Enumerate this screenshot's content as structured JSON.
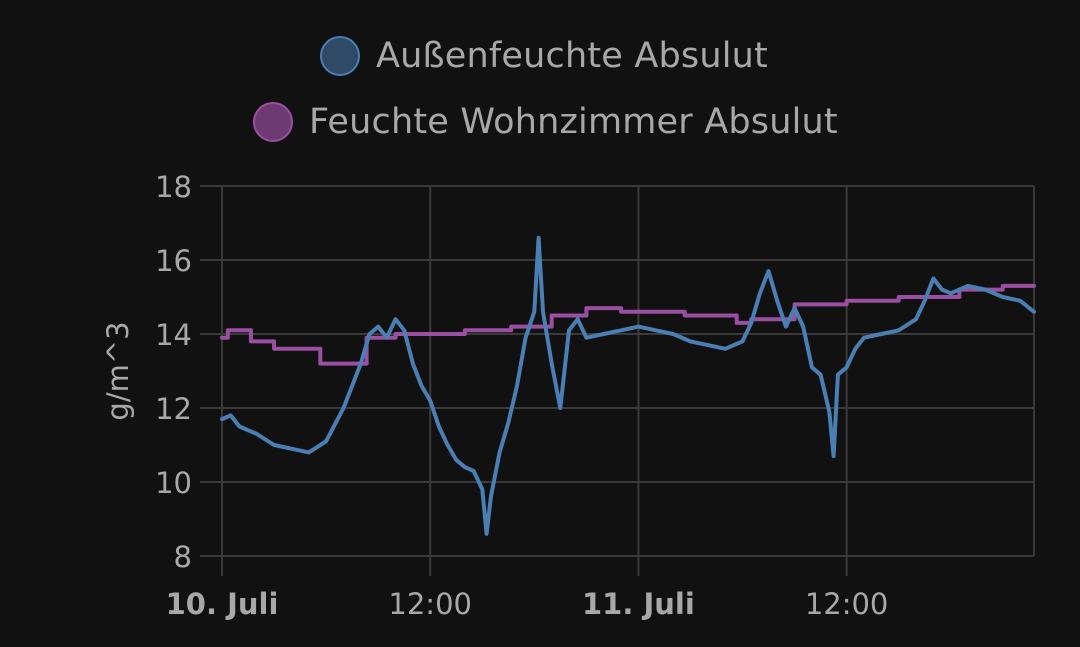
{
  "chart_data": {
    "type": "line",
    "title": "",
    "xlabel": "",
    "ylabel": "g/m^3",
    "ylim": [
      8,
      18
    ],
    "yticks": [
      8,
      10,
      12,
      14,
      16,
      18
    ],
    "xlim": [
      "2023-07-10T00:00",
      "2023-07-11T22:48"
    ],
    "xticks": [
      {
        "t": "2023-07-10T00:00",
        "label": "10. Juli",
        "major": true
      },
      {
        "t": "2023-07-10T12:00",
        "label": "12:00",
        "major": false
      },
      {
        "t": "2023-07-11T00:00",
        "label": "11. Juli",
        "major": true
      },
      {
        "t": "2023-07-11T12:00",
        "label": "12:00",
        "major": false
      }
    ],
    "grid": true,
    "legend_position": "top",
    "series": [
      {
        "name": "Außenfeuchte Absulut",
        "color": "#4a7fb3",
        "fill": "#2e4a66",
        "step": false,
        "points": [
          [
            "2023-07-10T00:00",
            11.7
          ],
          [
            "2023-07-10T00:30",
            11.8
          ],
          [
            "2023-07-10T01:00",
            11.5
          ],
          [
            "2023-07-10T02:00",
            11.3
          ],
          [
            "2023-07-10T03:00",
            11.0
          ],
          [
            "2023-07-10T04:00",
            10.9
          ],
          [
            "2023-07-10T05:00",
            10.8
          ],
          [
            "2023-07-10T06:00",
            11.1
          ],
          [
            "2023-07-10T07:00",
            12.0
          ],
          [
            "2023-07-10T08:00",
            13.2
          ],
          [
            "2023-07-10T08:30",
            14.0
          ],
          [
            "2023-07-10T09:00",
            14.2
          ],
          [
            "2023-07-10T09:30",
            13.9
          ],
          [
            "2023-07-10T10:00",
            14.4
          ],
          [
            "2023-07-10T10:30",
            14.1
          ],
          [
            "2023-07-10T11:00",
            13.2
          ],
          [
            "2023-07-10T11:30",
            12.6
          ],
          [
            "2023-07-10T12:00",
            12.2
          ],
          [
            "2023-07-10T12:30",
            11.5
          ],
          [
            "2023-07-10T13:00",
            11.0
          ],
          [
            "2023-07-10T13:30",
            10.6
          ],
          [
            "2023-07-10T14:00",
            10.4
          ],
          [
            "2023-07-10T14:30",
            10.3
          ],
          [
            "2023-07-10T15:00",
            9.8
          ],
          [
            "2023-07-10T15:15",
            8.6
          ],
          [
            "2023-07-10T15:30",
            9.6
          ],
          [
            "2023-07-10T16:00",
            10.8
          ],
          [
            "2023-07-10T16:30",
            11.6
          ],
          [
            "2023-07-10T17:00",
            12.6
          ],
          [
            "2023-07-10T17:30",
            13.9
          ],
          [
            "2023-07-10T18:00",
            14.6
          ],
          [
            "2023-07-10T18:15",
            16.6
          ],
          [
            "2023-07-10T18:30",
            14.6
          ],
          [
            "2023-07-10T19:00",
            13.2
          ],
          [
            "2023-07-10T19:30",
            12.0
          ],
          [
            "2023-07-10T20:00",
            14.1
          ],
          [
            "2023-07-10T20:30",
            14.4
          ],
          [
            "2023-07-10T21:00",
            13.9
          ],
          [
            "2023-07-10T22:00",
            14.0
          ],
          [
            "2023-07-10T23:00",
            14.1
          ],
          [
            "2023-07-11T00:00",
            14.2
          ],
          [
            "2023-07-11T01:00",
            14.1
          ],
          [
            "2023-07-11T02:00",
            14.0
          ],
          [
            "2023-07-11T03:00",
            13.8
          ],
          [
            "2023-07-11T04:00",
            13.7
          ],
          [
            "2023-07-11T05:00",
            13.6
          ],
          [
            "2023-07-11T06:00",
            13.8
          ],
          [
            "2023-07-11T06:30",
            14.3
          ],
          [
            "2023-07-11T07:00",
            15.1
          ],
          [
            "2023-07-11T07:30",
            15.7
          ],
          [
            "2023-07-11T08:00",
            14.9
          ],
          [
            "2023-07-11T08:30",
            14.2
          ],
          [
            "2023-07-11T09:00",
            14.7
          ],
          [
            "2023-07-11T09:30",
            14.2
          ],
          [
            "2023-07-11T10:00",
            13.1
          ],
          [
            "2023-07-11T10:30",
            12.9
          ],
          [
            "2023-07-11T11:00",
            11.9
          ],
          [
            "2023-07-11T11:15",
            10.7
          ],
          [
            "2023-07-11T11:30",
            12.9
          ],
          [
            "2023-07-11T12:00",
            13.1
          ],
          [
            "2023-07-11T12:30",
            13.6
          ],
          [
            "2023-07-11T13:00",
            13.9
          ],
          [
            "2023-07-11T14:00",
            14.0
          ],
          [
            "2023-07-11T15:00",
            14.1
          ],
          [
            "2023-07-11T16:00",
            14.4
          ],
          [
            "2023-07-11T16:30",
            14.9
          ],
          [
            "2023-07-11T17:00",
            15.5
          ],
          [
            "2023-07-11T17:30",
            15.2
          ],
          [
            "2023-07-11T18:00",
            15.1
          ],
          [
            "2023-07-11T19:00",
            15.3
          ],
          [
            "2023-07-11T20:00",
            15.2
          ],
          [
            "2023-07-11T21:00",
            15.0
          ],
          [
            "2023-07-11T22:00",
            14.9
          ],
          [
            "2023-07-11T22:48",
            14.6
          ]
        ]
      },
      {
        "name": "Feuchte Wohnzimmer Absulut",
        "color": "#9b4fa3",
        "fill": "#6e3a73",
        "step": true,
        "points": [
          [
            "2023-07-10T00:00",
            13.9
          ],
          [
            "2023-07-10T00:20",
            14.1
          ],
          [
            "2023-07-10T01:40",
            13.8
          ],
          [
            "2023-07-10T03:00",
            13.6
          ],
          [
            "2023-07-10T05:40",
            13.2
          ],
          [
            "2023-07-10T08:20",
            13.9
          ],
          [
            "2023-07-10T10:00",
            14.0
          ],
          [
            "2023-07-10T12:30",
            14.0
          ],
          [
            "2023-07-10T14:00",
            14.1
          ],
          [
            "2023-07-10T16:40",
            14.2
          ],
          [
            "2023-07-10T19:00",
            14.5
          ],
          [
            "2023-07-10T21:00",
            14.7
          ],
          [
            "2023-07-10T23:00",
            14.6
          ],
          [
            "2023-07-11T02:40",
            14.5
          ],
          [
            "2023-07-11T05:40",
            14.3
          ],
          [
            "2023-07-11T06:30",
            14.4
          ],
          [
            "2023-07-11T09:00",
            14.8
          ],
          [
            "2023-07-11T12:00",
            14.9
          ],
          [
            "2023-07-11T15:00",
            15.0
          ],
          [
            "2023-07-11T18:30",
            15.2
          ],
          [
            "2023-07-11T21:00",
            15.3
          ],
          [
            "2023-07-11T22:48",
            15.3
          ]
        ]
      }
    ]
  }
}
